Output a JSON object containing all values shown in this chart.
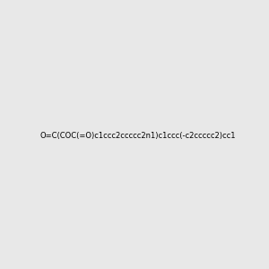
{
  "smiles": "O=C(COC(=O)c1ccc2ccccc2n1)c1ccc(-c2ccccc2)cc1",
  "image_size": 300,
  "background_color": "#e8e8e8",
  "bond_color": "#000000",
  "atom_colors": {
    "N": "#0000ff",
    "O": "#ff0000"
  }
}
